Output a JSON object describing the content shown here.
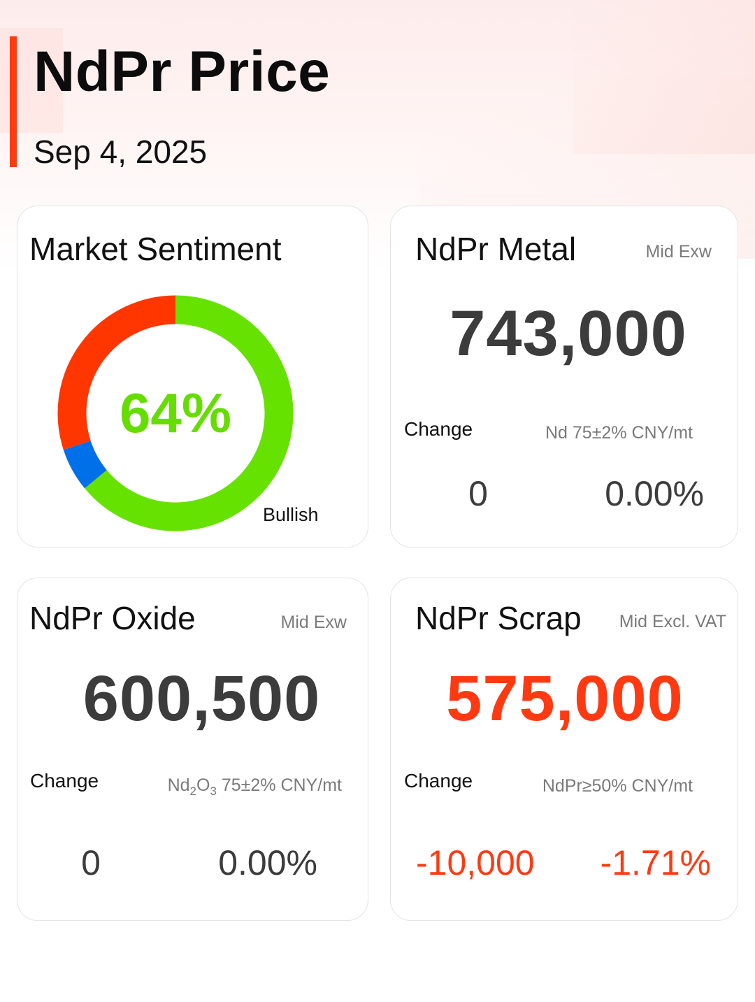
{
  "header": {
    "title": "NdPr Price",
    "date": "Sep 4, 2025",
    "accent_color": "#ff3b12"
  },
  "sentiment": {
    "title": "Market Sentiment",
    "percent_label": "64%",
    "label": "Bullish",
    "segments": [
      {
        "name": "bullish",
        "value": 64,
        "color": "#66e200"
      },
      {
        "name": "neutral",
        "value": 6,
        "color": "#0070e8"
      },
      {
        "name": "bearish",
        "value": 30,
        "color": "#ff3600"
      }
    ]
  },
  "metal": {
    "title": "NdPr Metal",
    "tag": "Mid  Exw",
    "price": "743,000",
    "change_label": "Change",
    "spec": "Nd 75±2% CNY/mt",
    "change_abs": "0",
    "change_pct": "0.00%"
  },
  "oxide": {
    "title": "NdPr Oxide",
    "tag": "Mid  Exw",
    "price": "600,500",
    "change_label": "Change",
    "spec_prefix": "Nd",
    "spec_sub1": "2",
    "spec_mid": "O",
    "spec_sub2": "3",
    "spec_suffix": " 75±2% CNY/mt",
    "change_abs": "0",
    "change_pct": "0.00%"
  },
  "scrap": {
    "title": "NdPr Scrap",
    "tag": "Mid  Excl. VAT",
    "price": "575,000",
    "change_label": "Change",
    "spec": "NdPr≥50% CNY/mt",
    "change_abs": "-10,000",
    "change_pct": "-1.71%",
    "down_color": "#ff3a12"
  }
}
